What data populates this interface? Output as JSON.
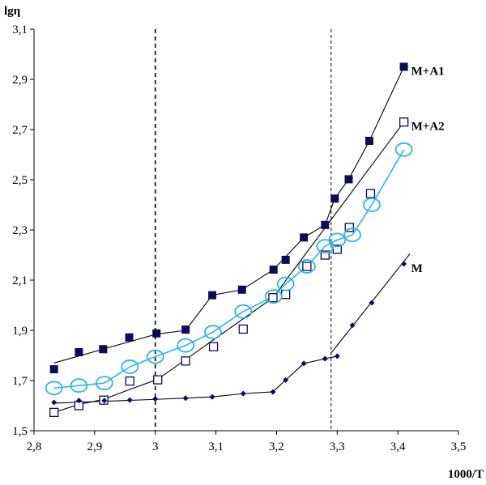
{
  "chart_data": {
    "type": "scatter",
    "xlabel": "1000/T",
    "ylabel": "lgη",
    "xlim": [
      2.8,
      3.5
    ],
    "ylim": [
      1.5,
      3.1
    ],
    "x_ticks": [
      "2,8",
      "2,9",
      "3",
      "3,1",
      "3,2",
      "3,3",
      "3,4",
      "3,5"
    ],
    "x_tick_values": [
      2.8,
      2.9,
      3.0,
      3.1,
      3.2,
      3.3,
      3.4,
      3.5
    ],
    "y_ticks": [
      "1,5",
      "1,7",
      "1,9",
      "2,1",
      "2,3",
      "2,5",
      "2,7",
      "2,9",
      "3,1"
    ],
    "y_tick_values": [
      1.5,
      1.7,
      1.9,
      2.1,
      2.3,
      2.5,
      2.7,
      2.9,
      3.1
    ],
    "grid": false,
    "vertical_reference_lines": [
      3.0,
      3.29
    ],
    "series": [
      {
        "name": "M+A1",
        "marker": "filled-square",
        "color": "#0a0a5c",
        "x": [
          2.833,
          2.874,
          2.914,
          2.957,
          3.002,
          3.05,
          3.094,
          3.143,
          3.195,
          3.215,
          3.245,
          3.28,
          3.296,
          3.319,
          3.353,
          3.41
        ],
        "y": [
          1.745,
          1.813,
          1.825,
          1.872,
          1.888,
          1.903,
          2.04,
          2.062,
          2.142,
          2.181,
          2.27,
          2.32,
          2.425,
          2.502,
          2.655,
          2.95
        ],
        "fit_segments": [
          {
            "x": [
              2.833,
              3.002
            ],
            "y": [
              1.77,
              1.885
            ]
          },
          {
            "x": [
              3.002,
              3.05,
              3.094,
              3.143,
              3.195,
              3.245
            ],
            "y": [
              1.885,
              1.9,
              2.04,
              2.062,
              2.142,
              2.27
            ]
          },
          {
            "x": [
              3.245,
              3.28,
              3.296,
              3.319,
              3.353,
              3.41
            ],
            "y": [
              2.27,
              2.32,
              2.425,
              2.502,
              2.655,
              2.95
            ]
          }
        ]
      },
      {
        "name": "M+A2",
        "marker": "open-square",
        "color": "#0a0a5c",
        "x": [
          2.833,
          2.874,
          2.915,
          2.958,
          3.004,
          3.05,
          3.096,
          3.145,
          3.194,
          3.215,
          3.25,
          3.28,
          3.3,
          3.32,
          3.355,
          3.41
        ],
        "y": [
          1.573,
          1.6,
          1.622,
          1.698,
          1.703,
          1.778,
          1.835,
          1.905,
          2.03,
          2.043,
          2.155,
          2.2,
          2.223,
          2.31,
          2.445,
          2.73
        ],
        "fit_segments": [
          {
            "x": [
              2.833,
              2.874,
              2.915,
              2.958,
              3.004
            ],
            "y": [
              1.573,
              1.605,
              1.625,
              1.665,
              1.705
            ]
          },
          {
            "x": [
              3.004,
              3.194
            ],
            "y": [
              1.705,
              2.03
            ]
          },
          {
            "x": [
              3.194,
              3.41
            ],
            "y": [
              2.03,
              2.73
            ]
          }
        ]
      },
      {
        "name": "",
        "marker": "open-circle",
        "color": "#29b6e8",
        "x": [
          2.833,
          2.874,
          2.916,
          2.958,
          3.0,
          3.05,
          3.095,
          3.145,
          3.195,
          3.215,
          3.25,
          3.28,
          3.3,
          3.325,
          3.357,
          3.41
        ],
        "y": [
          1.67,
          1.68,
          1.69,
          1.755,
          1.795,
          1.84,
          1.893,
          1.975,
          2.035,
          2.085,
          2.155,
          2.235,
          2.26,
          2.28,
          2.4,
          2.62
        ]
      },
      {
        "name": "M",
        "marker": "filled-diamond",
        "color": "#0a0a5c",
        "x": [
          2.833,
          2.874,
          2.916,
          2.958,
          3.0,
          3.05,
          3.094,
          3.145,
          3.194,
          3.215,
          3.245,
          3.28,
          3.3,
          3.325,
          3.357,
          3.41
        ],
        "y": [
          1.613,
          1.62,
          1.62,
          1.622,
          1.627,
          1.63,
          1.635,
          1.648,
          1.655,
          1.702,
          1.768,
          1.787,
          1.797,
          1.92,
          2.01,
          2.165
        ],
        "fit_segments": [
          {
            "x": [
              2.833,
              3.0,
              3.05,
              3.094,
              3.145,
              3.194,
              3.215,
              3.245,
              3.28,
              3.3
            ],
            "y": [
              1.61,
              1.625,
              1.63,
              1.635,
              1.648,
              1.655,
              1.702,
              1.768,
              1.787,
              1.797
            ]
          },
          {
            "x": [
              3.29,
              3.42
            ],
            "y": [
              1.81,
              2.205
            ]
          }
        ]
      }
    ]
  }
}
